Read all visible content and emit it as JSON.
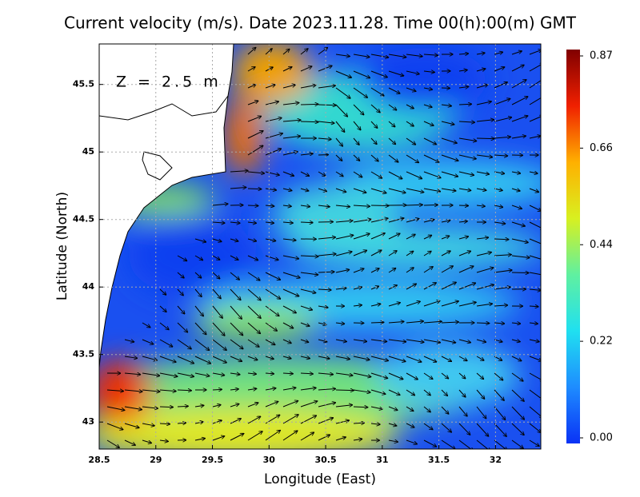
{
  "chart_data": {
    "type": "heatmap",
    "title": "Current velocity (m/s). Date 2023.11.28. Time 00(h):00(m) GMT",
    "annotation": "Z = 2.5 m",
    "x_label": "Longitude (East)",
    "y_label": "Latitude (North)",
    "xlim": [
      28.5,
      32.4
    ],
    "xticks": [
      28.5,
      29,
      29.5,
      30,
      30.5,
      31,
      31.5,
      32
    ],
    "ylim": [
      42.8,
      45.8
    ],
    "yticks": [
      43,
      43.5,
      44,
      44.5,
      45,
      45.5
    ],
    "grid": true,
    "clim": [
      0,
      0.87
    ],
    "cticks": [
      {
        "value": 0,
        "label": "0.00"
      },
      0.22,
      0.44,
      0.66,
      0.87
    ],
    "colormap": [
      "#0a32f5",
      "#1e8cff",
      "#20e0f0",
      "#60f0a0",
      "#d8f020",
      "#ffb000",
      "#f02000",
      "#800000"
    ]
  }
}
